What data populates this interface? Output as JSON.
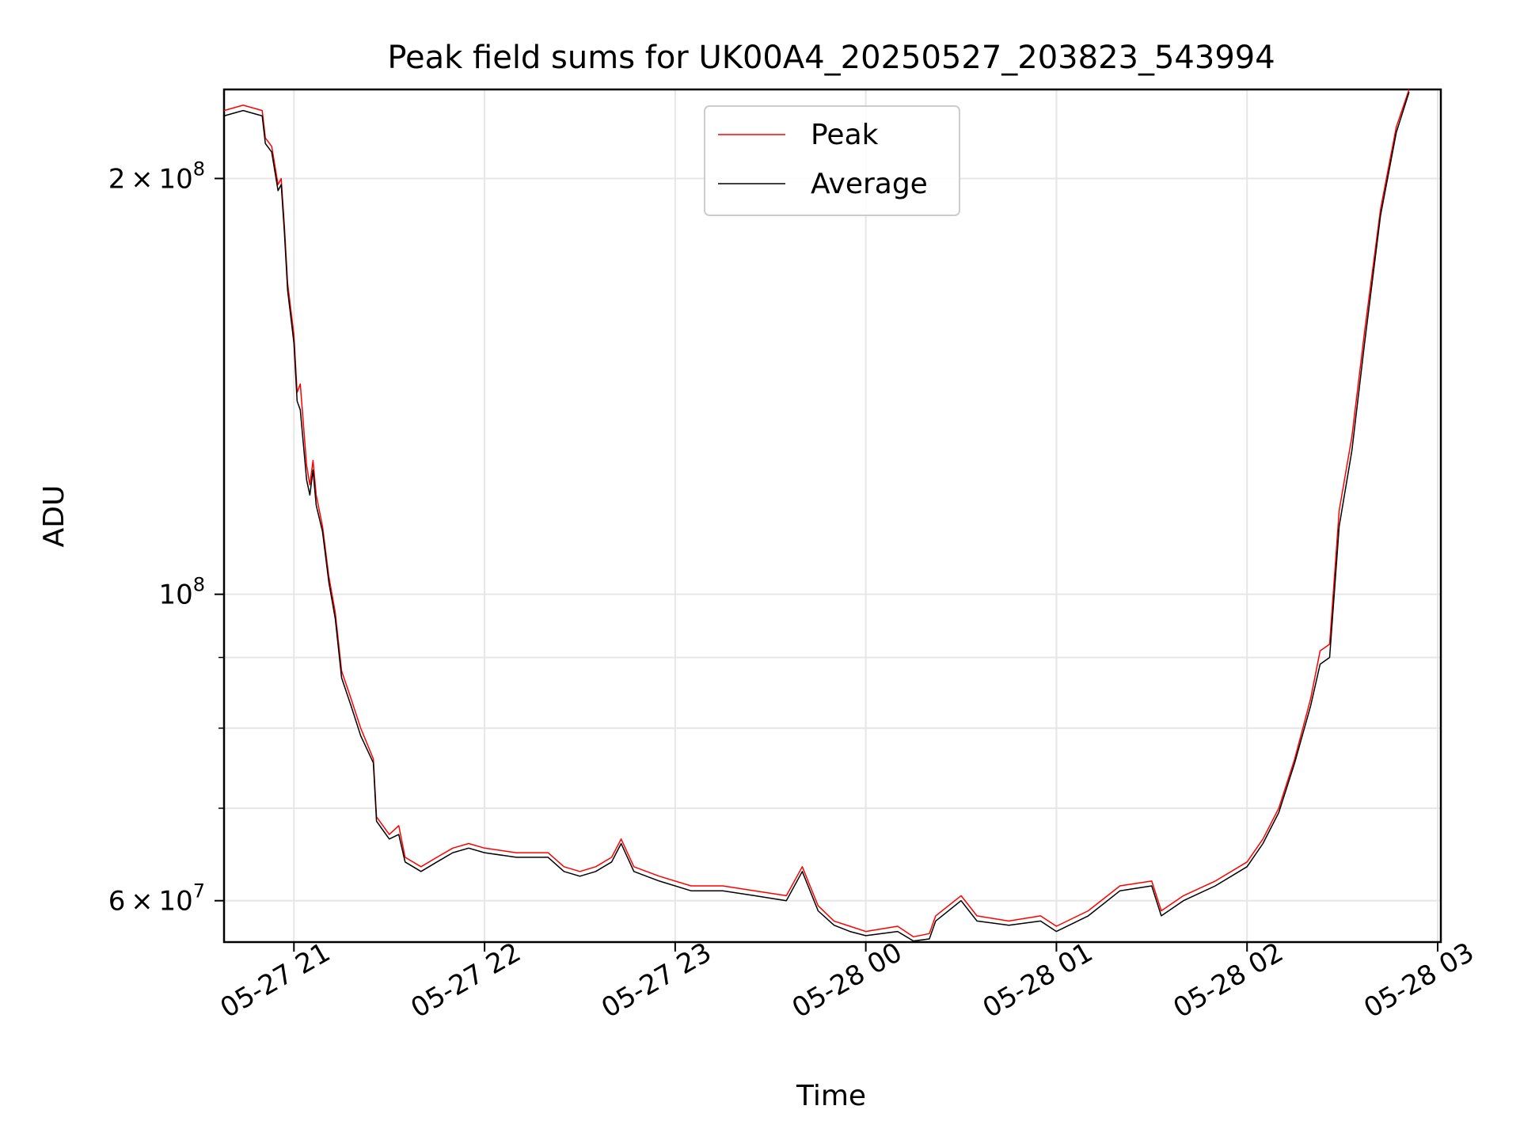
{
  "chart_data": {
    "type": "line",
    "title": "Peak field sums for UK00A4_20250527_203823_543994",
    "xlabel": "Time",
    "ylabel": "ADU",
    "y_scale": "log",
    "grid": true,
    "legend_position": "upper-center",
    "x_range": [
      "2025-05-27T20:38",
      "2025-05-28T03:01"
    ],
    "ylim": [
      56000000,
      232000000
    ],
    "x_ticks": [
      {
        "time": "2025-05-27T21:00",
        "label": "05-27 21"
      },
      {
        "time": "2025-05-27T22:00",
        "label": "05-27 22"
      },
      {
        "time": "2025-05-27T23:00",
        "label": "05-27 23"
      },
      {
        "time": "2025-05-28T00:00",
        "label": "05-28 00"
      },
      {
        "time": "2025-05-28T01:00",
        "label": "05-28 01"
      },
      {
        "time": "2025-05-28T02:00",
        "label": "05-28 02"
      },
      {
        "time": "2025-05-28T03:00",
        "label": "05-28 03"
      }
    ],
    "y_major_ticks": [
      {
        "value": 60000000,
        "base": "6",
        "exp": "7"
      },
      {
        "value": 100000000,
        "base": "",
        "exp": "8"
      },
      {
        "value": 200000000,
        "base": "2",
        "exp": "8"
      }
    ],
    "y_minor_ticks": [
      70000000,
      80000000,
      90000000
    ],
    "series": [
      {
        "name": "Peak",
        "color": "#ff0000",
        "points": [
          [
            "2025-05-27T20:38",
            224000000
          ],
          [
            "2025-05-27T20:44",
            226000000
          ],
          [
            "2025-05-27T20:50",
            224000000
          ],
          [
            "2025-05-27T20:51",
            214000000
          ],
          [
            "2025-05-27T20:53",
            211000000
          ],
          [
            "2025-05-27T20:55",
            198000000
          ],
          [
            "2025-05-27T20:56",
            200000000
          ],
          [
            "2025-05-27T20:57",
            185000000
          ],
          [
            "2025-05-27T20:58",
            168000000
          ],
          [
            "2025-05-27T21:00",
            154000000
          ],
          [
            "2025-05-27T21:01",
            140000000
          ],
          [
            "2025-05-27T21:02",
            142000000
          ],
          [
            "2025-05-27T21:04",
            124000000
          ],
          [
            "2025-05-27T21:05",
            120000000
          ],
          [
            "2025-05-27T21:06",
            125000000
          ],
          [
            "2025-05-27T21:07",
            118000000
          ],
          [
            "2025-05-27T21:09",
            112000000
          ],
          [
            "2025-05-27T21:11",
            103000000
          ],
          [
            "2025-05-27T21:13",
            97000000
          ],
          [
            "2025-05-27T21:15",
            88000000
          ],
          [
            "2025-05-27T21:18",
            84000000
          ],
          [
            "2025-05-27T21:21",
            80000000
          ],
          [
            "2025-05-27T21:25",
            76000000
          ],
          [
            "2025-05-27T21:26",
            69000000
          ],
          [
            "2025-05-27T21:30",
            67000000
          ],
          [
            "2025-05-27T21:33",
            68000000
          ],
          [
            "2025-05-27T21:35",
            64500000
          ],
          [
            "2025-05-27T21:40",
            63500000
          ],
          [
            "2025-05-27T21:45",
            64500000
          ],
          [
            "2025-05-27T21:50",
            65500000
          ],
          [
            "2025-05-27T21:55",
            66000000
          ],
          [
            "2025-05-27T22:00",
            65500000
          ],
          [
            "2025-05-27T22:10",
            65000000
          ],
          [
            "2025-05-27T22:20",
            65000000
          ],
          [
            "2025-05-27T22:25",
            63500000
          ],
          [
            "2025-05-27T22:30",
            63000000
          ],
          [
            "2025-05-27T22:35",
            63500000
          ],
          [
            "2025-05-27T22:40",
            64500000
          ],
          [
            "2025-05-27T22:43",
            66500000
          ],
          [
            "2025-05-27T22:47",
            63500000
          ],
          [
            "2025-05-27T22:55",
            62500000
          ],
          [
            "2025-05-27T23:05",
            61500000
          ],
          [
            "2025-05-27T23:15",
            61500000
          ],
          [
            "2025-05-27T23:25",
            61000000
          ],
          [
            "2025-05-27T23:35",
            60500000
          ],
          [
            "2025-05-27T23:40",
            63500000
          ],
          [
            "2025-05-27T23:45",
            59500000
          ],
          [
            "2025-05-27T23:50",
            58000000
          ],
          [
            "2025-05-27T23:55",
            57500000
          ],
          [
            "2025-05-28T00:00",
            57000000
          ],
          [
            "2025-05-28T00:10",
            57500000
          ],
          [
            "2025-05-28T00:15",
            56500000
          ],
          [
            "2025-05-28T00:20",
            56800000
          ],
          [
            "2025-05-28T00:22",
            58500000
          ],
          [
            "2025-05-28T00:30",
            60500000
          ],
          [
            "2025-05-28T00:35",
            58500000
          ],
          [
            "2025-05-28T00:45",
            58000000
          ],
          [
            "2025-05-28T00:55",
            58500000
          ],
          [
            "2025-05-28T01:00",
            57500000
          ],
          [
            "2025-05-28T01:10",
            59000000
          ],
          [
            "2025-05-28T01:20",
            61500000
          ],
          [
            "2025-05-28T01:30",
            62000000
          ],
          [
            "2025-05-28T01:33",
            59000000
          ],
          [
            "2025-05-28T01:40",
            60500000
          ],
          [
            "2025-05-28T01:50",
            62000000
          ],
          [
            "2025-05-28T02:00",
            64000000
          ],
          [
            "2025-05-28T02:05",
            66500000
          ],
          [
            "2025-05-28T02:10",
            70000000
          ],
          [
            "2025-05-28T02:15",
            76000000
          ],
          [
            "2025-05-28T02:20",
            84000000
          ],
          [
            "2025-05-28T02:23",
            91000000
          ],
          [
            "2025-05-28T02:26",
            92000000
          ],
          [
            "2025-05-28T02:29",
            115000000
          ],
          [
            "2025-05-28T02:33",
            130000000
          ],
          [
            "2025-05-28T02:37",
            155000000
          ],
          [
            "2025-05-28T02:42",
            190000000
          ],
          [
            "2025-05-28T02:47",
            218000000
          ],
          [
            "2025-05-28T02:51",
            232000000
          ]
        ]
      },
      {
        "name": "Average",
        "color": "#000000",
        "points": [
          [
            "2025-05-27T20:38",
            222000000
          ],
          [
            "2025-05-27T20:44",
            224000000
          ],
          [
            "2025-05-27T20:50",
            222000000
          ],
          [
            "2025-05-27T20:51",
            212000000
          ],
          [
            "2025-05-27T20:53",
            209000000
          ],
          [
            "2025-05-27T20:55",
            196000000
          ],
          [
            "2025-05-27T20:56",
            198000000
          ],
          [
            "2025-05-27T20:57",
            183000000
          ],
          [
            "2025-05-27T20:58",
            166000000
          ],
          [
            "2025-05-27T21:00",
            152000000
          ],
          [
            "2025-05-27T21:01",
            138000000
          ],
          [
            "2025-05-27T21:02",
            136000000
          ],
          [
            "2025-05-27T21:04",
            121000000
          ],
          [
            "2025-05-27T21:05",
            118000000
          ],
          [
            "2025-05-27T21:06",
            123000000
          ],
          [
            "2025-05-27T21:07",
            116000000
          ],
          [
            "2025-05-27T21:09",
            111000000
          ],
          [
            "2025-05-27T21:11",
            102000000
          ],
          [
            "2025-05-27T21:13",
            96000000
          ],
          [
            "2025-05-27T21:15",
            87000000
          ],
          [
            "2025-05-27T21:18",
            83000000
          ],
          [
            "2025-05-27T21:21",
            79000000
          ],
          [
            "2025-05-27T21:25",
            75500000
          ],
          [
            "2025-05-27T21:26",
            68500000
          ],
          [
            "2025-05-27T21:30",
            66500000
          ],
          [
            "2025-05-27T21:33",
            67000000
          ],
          [
            "2025-05-27T21:35",
            64000000
          ],
          [
            "2025-05-27T21:40",
            63000000
          ],
          [
            "2025-05-27T21:45",
            64000000
          ],
          [
            "2025-05-27T21:50",
            65000000
          ],
          [
            "2025-05-27T21:55",
            65500000
          ],
          [
            "2025-05-27T22:00",
            65000000
          ],
          [
            "2025-05-27T22:10",
            64500000
          ],
          [
            "2025-05-27T22:20",
            64500000
          ],
          [
            "2025-05-27T22:25",
            63000000
          ],
          [
            "2025-05-27T22:30",
            62500000
          ],
          [
            "2025-05-27T22:35",
            63000000
          ],
          [
            "2025-05-27T22:40",
            64000000
          ],
          [
            "2025-05-27T22:43",
            66000000
          ],
          [
            "2025-05-27T22:47",
            63000000
          ],
          [
            "2025-05-27T22:55",
            62000000
          ],
          [
            "2025-05-27T23:05",
            61000000
          ],
          [
            "2025-05-27T23:15",
            61000000
          ],
          [
            "2025-05-27T23:25",
            60500000
          ],
          [
            "2025-05-27T23:35",
            60000000
          ],
          [
            "2025-05-27T23:40",
            63000000
          ],
          [
            "2025-05-27T23:45",
            59000000
          ],
          [
            "2025-05-27T23:50",
            57600000
          ],
          [
            "2025-05-27T23:55",
            57000000
          ],
          [
            "2025-05-28T00:00",
            56600000
          ],
          [
            "2025-05-28T00:10",
            57000000
          ],
          [
            "2025-05-28T00:15",
            56100000
          ],
          [
            "2025-05-28T00:20",
            56300000
          ],
          [
            "2025-05-28T00:22",
            58000000
          ],
          [
            "2025-05-28T00:30",
            60000000
          ],
          [
            "2025-05-28T00:35",
            58000000
          ],
          [
            "2025-05-28T00:45",
            57600000
          ],
          [
            "2025-05-28T00:55",
            58000000
          ],
          [
            "2025-05-28T01:00",
            57000000
          ],
          [
            "2025-05-28T01:10",
            58500000
          ],
          [
            "2025-05-28T01:20",
            61000000
          ],
          [
            "2025-05-28T01:30",
            61500000
          ],
          [
            "2025-05-28T01:33",
            58500000
          ],
          [
            "2025-05-28T01:40",
            60000000
          ],
          [
            "2025-05-28T01:50",
            61500000
          ],
          [
            "2025-05-28T02:00",
            63500000
          ],
          [
            "2025-05-28T02:05",
            66000000
          ],
          [
            "2025-05-28T02:10",
            69500000
          ],
          [
            "2025-05-28T02:15",
            75500000
          ],
          [
            "2025-05-28T02:20",
            83000000
          ],
          [
            "2025-05-28T02:23",
            89000000
          ],
          [
            "2025-05-28T02:26",
            90000000
          ],
          [
            "2025-05-28T02:29",
            112000000
          ],
          [
            "2025-05-28T02:33",
            127000000
          ],
          [
            "2025-05-28T02:37",
            152000000
          ],
          [
            "2025-05-28T02:42",
            188000000
          ],
          [
            "2025-05-28T02:47",
            216000000
          ],
          [
            "2025-05-28T02:51",
            231000000
          ]
        ]
      }
    ]
  }
}
